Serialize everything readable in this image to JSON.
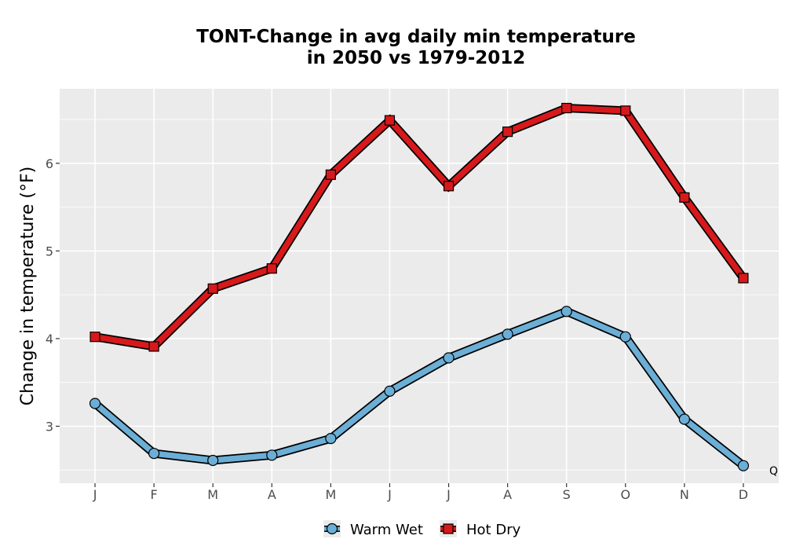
{
  "chart_data": {
    "type": "line",
    "title_lines": [
      "TONT-Change in avg daily min temperature",
      "in 2050 vs 1979-2012"
    ],
    "xlabel": "",
    "ylabel": "Change in temperature (°F)",
    "categories": [
      "J",
      "F",
      "M",
      "A",
      "M",
      "J",
      "J",
      "A",
      "S",
      "O",
      "N",
      "D"
    ],
    "ylim": [
      2.35,
      6.85
    ],
    "yticks": [
      3,
      4,
      5,
      6
    ],
    "grid": true,
    "legend_position": "bottom",
    "series": [
      {
        "name": "Warm Wet",
        "marker": "circle",
        "color": "#6baed6",
        "values": [
          3.26,
          2.69,
          2.61,
          2.67,
          2.86,
          3.4,
          3.78,
          4.05,
          4.31,
          4.02,
          3.08,
          2.55
        ]
      },
      {
        "name": "Hot Dry",
        "marker": "square",
        "color": "#d7191c",
        "values": [
          4.02,
          3.91,
          4.57,
          4.8,
          5.87,
          6.49,
          5.74,
          6.36,
          6.63,
          6.6,
          5.61,
          4.69
        ]
      }
    ],
    "corner_label": "Q",
    "colors": {
      "panel_bg": "#ebebeb",
      "grid": "#ffffff",
      "outline": "#000000"
    }
  }
}
